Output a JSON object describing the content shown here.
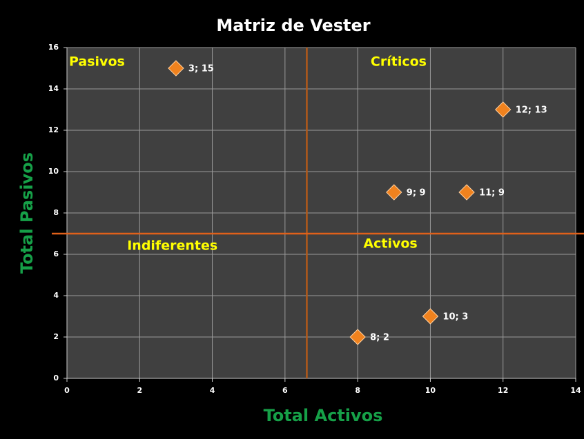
{
  "chart_data": {
    "type": "scatter",
    "title": "Matriz de Vester",
    "x_label": "Total Activos",
    "y_label": "Total Pasivos",
    "x": [
      3,
      12,
      9,
      11,
      10,
      8
    ],
    "values": [
      15,
      13,
      9,
      9,
      3,
      2
    ],
    "value_labels": [
      "3; 15",
      "12; 13",
      "9; 9",
      "11; 9",
      "10; 3",
      "8; 2"
    ],
    "color": "#f0821e",
    "xlim": [
      0,
      14
    ],
    "xticks": [
      0,
      2,
      4,
      6,
      8,
      10,
      12,
      14
    ],
    "ylim": [
      0,
      16
    ],
    "yticks": [
      0,
      2,
      4,
      6,
      8,
      10,
      12,
      14,
      16
    ],
    "grid": true,
    "dividers": {
      "x": 6.6,
      "y": 7,
      "x_color": "#b35a1a",
      "y_color": "#e0601a"
    },
    "annotations": [
      {
        "text": "Pasivos",
        "x": 0,
        "y": 15.3
      },
      {
        "text": "Críticos",
        "x": 8.3,
        "y": 15.3
      },
      {
        "text": "Indiferentes",
        "x": 1.6,
        "y": 6.4
      },
      {
        "text": "Activos",
        "x": 8.1,
        "y": 6.5
      }
    ]
  }
}
